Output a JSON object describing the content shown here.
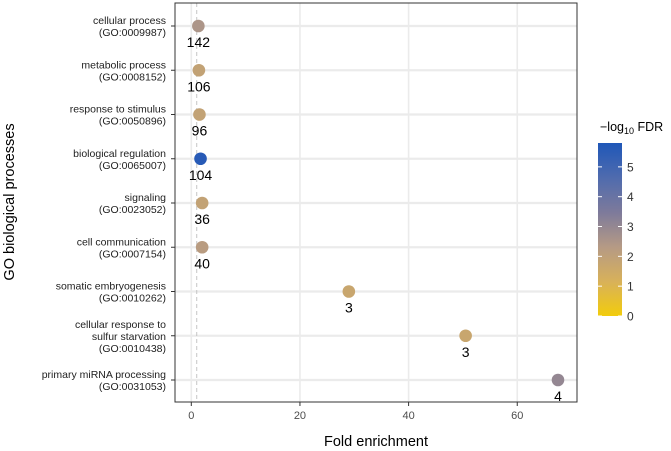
{
  "chart_data": {
    "type": "scatter",
    "title": "",
    "xlabel": "Fold enrichment",
    "ylabel": "GO biological processes",
    "xlim": [
      -3,
      71
    ],
    "x_ticks": [
      0,
      20,
      40,
      60
    ],
    "reference_line_x": 1,
    "grid": true,
    "categories": [
      {
        "name": "cellular process",
        "id": "(GO:0009987)",
        "name_lines": [
          "cellular process"
        ]
      },
      {
        "name": "metabolic process",
        "id": "(GO:0008152)",
        "name_lines": [
          "metabolic process"
        ]
      },
      {
        "name": "response to stimulus",
        "id": "(GO:0050896)",
        "name_lines": [
          "response to stimulus"
        ]
      },
      {
        "name": "biological regulation",
        "id": "(GO:0065007)",
        "name_lines": [
          "biological regulation"
        ]
      },
      {
        "name": "signaling",
        "id": "(GO:0023052)",
        "name_lines": [
          "signaling"
        ]
      },
      {
        "name": "cell communication",
        "id": "(GO:0007154)",
        "name_lines": [
          "cell communication"
        ]
      },
      {
        "name": "somatic embryogenesis",
        "id": "(GO:0010262)",
        "name_lines": [
          "somatic embryogenesis"
        ]
      },
      {
        "name": "cellular response to sulfur starvation",
        "id": "(GO:0010438)",
        "name_lines": [
          "cellular response to",
          "sulfur starvation"
        ]
      },
      {
        "name": "primary miRNA processing",
        "id": "(GO:0031053)",
        "name_lines": [
          "primary miRNA processing"
        ]
      }
    ],
    "points": [
      {
        "x": 1.3,
        "count": "142",
        "neg_log10_fdr": 2.5
      },
      {
        "x": 1.4,
        "count": "106",
        "neg_log10_fdr": 1.9
      },
      {
        "x": 1.5,
        "count": "96",
        "neg_log10_fdr": 1.9
      },
      {
        "x": 1.7,
        "count": "104",
        "neg_log10_fdr": 5.6
      },
      {
        "x": 2.0,
        "count": "36",
        "neg_log10_fdr": 1.9
      },
      {
        "x": 2.0,
        "count": "40",
        "neg_log10_fdr": 2.2
      },
      {
        "x": 29.0,
        "count": "3",
        "neg_log10_fdr": 1.7
      },
      {
        "x": 50.5,
        "count": "3",
        "neg_log10_fdr": 1.7
      },
      {
        "x": 67.5,
        "count": "4",
        "neg_log10_fdr": 3.0
      }
    ],
    "legend": {
      "title_prefix": "−log",
      "title_sub": "10",
      "title_suffix": " FDR",
      "range": [
        0,
        5.8
      ],
      "ticks": [
        0,
        1,
        2,
        3,
        4,
        5
      ],
      "placement": "right",
      "colors": [
        "#F2CC0C",
        "#D8B15A",
        "#B59A85",
        "#7D7A9B",
        "#4F6BAE",
        "#1F57B8"
      ]
    }
  }
}
